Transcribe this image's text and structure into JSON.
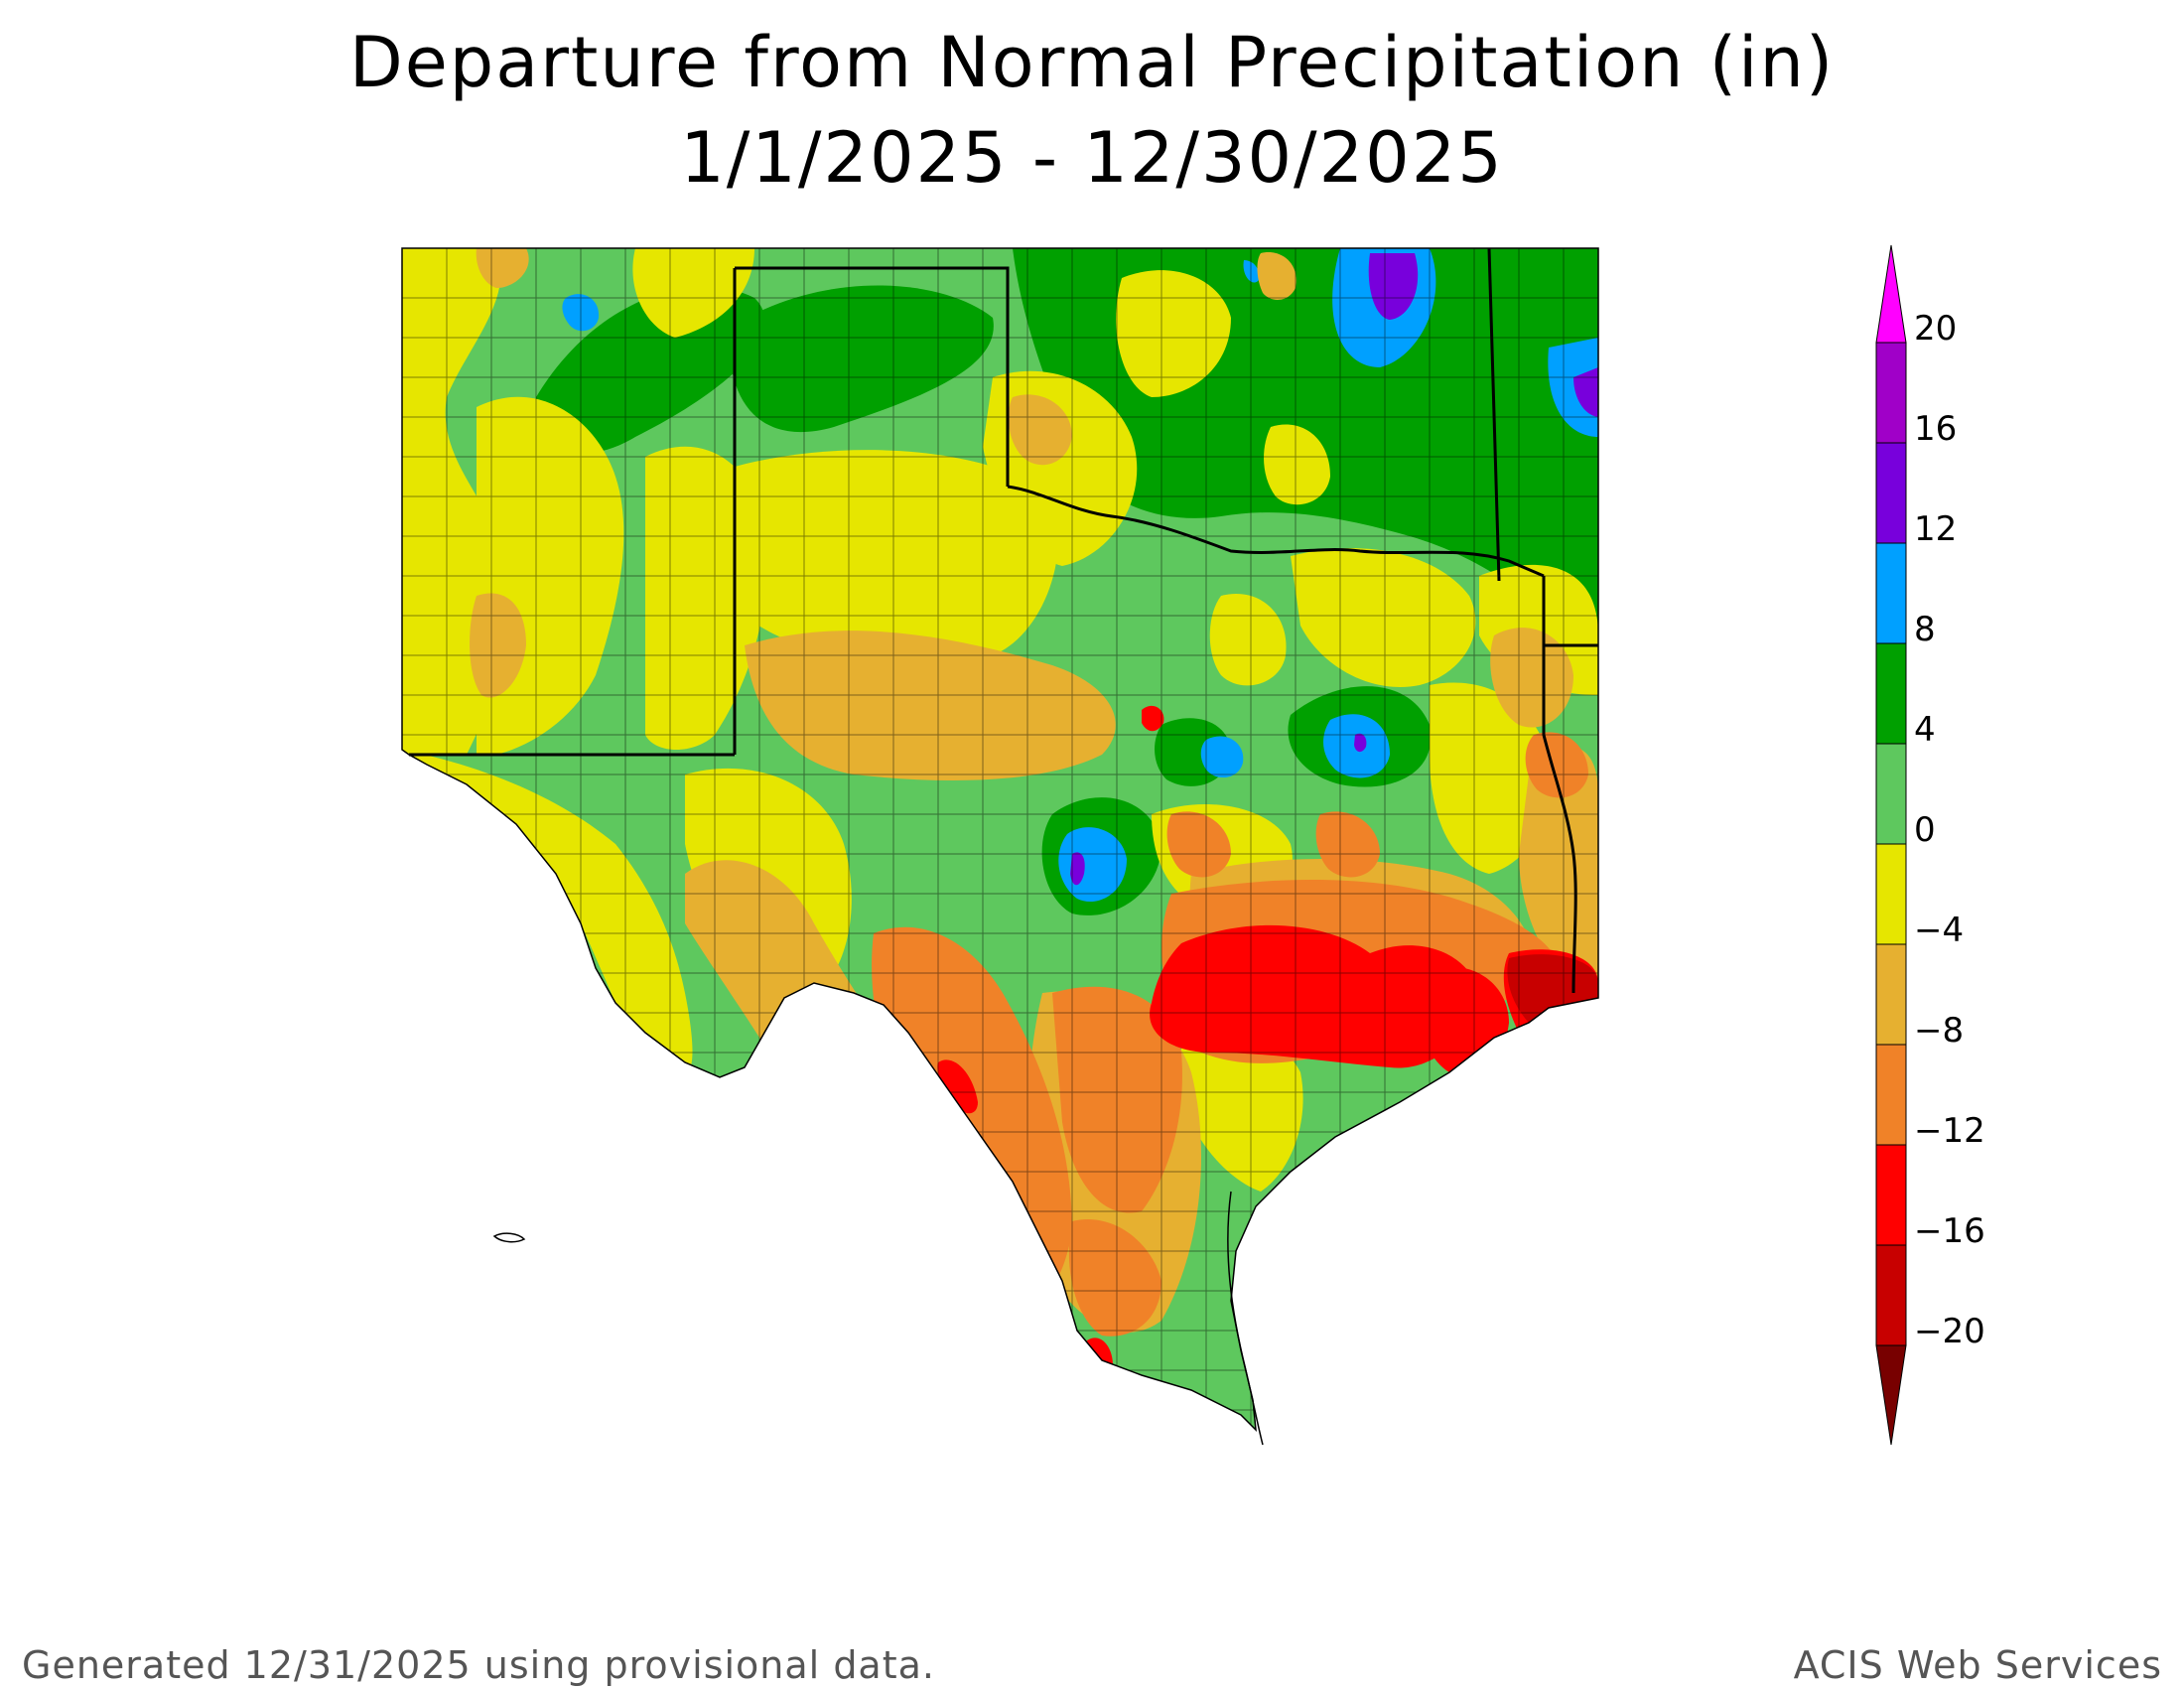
{
  "title": "Departure from Normal Precipitation (in)",
  "date_range": "1/1/2025 - 12/30/2025",
  "footer_left": "Generated 12/31/2025  using provisional data.",
  "footer_right": "ACIS Web Services",
  "legend": {
    "ticks": [
      "20",
      "16",
      "12",
      "8",
      "4",
      "0",
      "−4",
      "−8",
      "−12",
      "−16",
      "−20"
    ],
    "bins": [
      {
        "from": 16,
        "to": 20,
        "color": "#a000c8"
      },
      {
        "from": 12,
        "to": 16,
        "color": "#7800dc"
      },
      {
        "from": 8,
        "to": 12,
        "color": "#00a0ff"
      },
      {
        "from": 4,
        "to": 8,
        "color": "#00a000"
      },
      {
        "from": 0,
        "to": 4,
        "color": "#5ec85e"
      },
      {
        "from": -4,
        "to": 0,
        "color": "#e6e600"
      },
      {
        "from": -8,
        "to": -4,
        "color": "#e6b030"
      },
      {
        "from": -12,
        "to": -8,
        "color": "#f08228"
      },
      {
        "from": -16,
        "to": -12,
        "color": "#ff0000"
      },
      {
        "from": -20,
        "to": -16,
        "color": "#c80000"
      }
    ],
    "over_color": "#ff00ff",
    "under_color": "#780000"
  },
  "map": {
    "region": "Texas, Oklahoma, New Mexico and parts of Louisiana",
    "land_color": "#5ec85e"
  }
}
